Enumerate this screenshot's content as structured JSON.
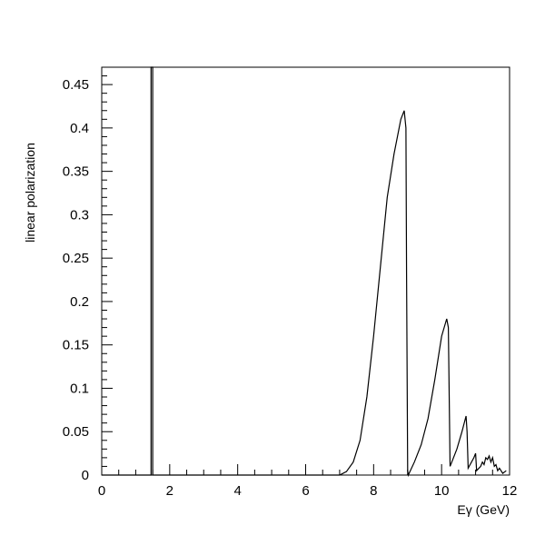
{
  "chart_data": {
    "type": "line",
    "title": "",
    "xlabel": "Eγ (GeV)",
    "ylabel": "linear polarization",
    "xlim": [
      0,
      12
    ],
    "ylim": [
      0,
      0.47
    ],
    "x_ticks": [
      0,
      2,
      4,
      6,
      8,
      10,
      12
    ],
    "x_tick_labels": [
      "0",
      "2",
      "4",
      "6",
      "8",
      "10",
      "12"
    ],
    "y_ticks": [
      0,
      0.05,
      0.1,
      0.15,
      0.2,
      0.25,
      0.3,
      0.35,
      0.4,
      0.45
    ],
    "y_tick_labels": [
      "0",
      "0.05",
      "0.1",
      "0.15",
      "0.2",
      "0.25",
      "0.3",
      "0.35",
      "0.4",
      "0.45"
    ],
    "grid": false,
    "legend": false,
    "series": [
      {
        "color": "#000000",
        "x": [
          0,
          1.45,
          1.45,
          1.5,
          1.5,
          7.0,
          7.2,
          7.4,
          7.6,
          7.8,
          8.0,
          8.2,
          8.4,
          8.6,
          8.8,
          8.9,
          8.95,
          8.97,
          9.0,
          9.02,
          9.2,
          9.4,
          9.6,
          9.8,
          10.0,
          10.15,
          10.2,
          10.25,
          10.3,
          10.45,
          10.6,
          10.72,
          10.75,
          10.78,
          10.95,
          11.0,
          11.03,
          11.15,
          11.2,
          11.25,
          11.3,
          11.35,
          11.4,
          11.45,
          11.5,
          11.55,
          11.6,
          11.65,
          11.7,
          11.8,
          11.9
        ],
        "y": [
          0,
          0,
          0.47,
          0.47,
          0,
          0,
          0.004,
          0.015,
          0.04,
          0.09,
          0.16,
          0.24,
          0.32,
          0.37,
          0.41,
          0.42,
          0.4,
          0.23,
          0.005,
          0.0,
          0.015,
          0.035,
          0.065,
          0.11,
          0.16,
          0.18,
          0.17,
          0.01,
          0.015,
          0.03,
          0.05,
          0.068,
          0.05,
          0.008,
          0.02,
          0.025,
          0.005,
          0.01,
          0.015,
          0.012,
          0.02,
          0.018,
          0.022,
          0.015,
          0.02,
          0.01,
          0.012,
          0.005,
          0.008,
          0.002,
          0.005
        ]
      }
    ]
  }
}
